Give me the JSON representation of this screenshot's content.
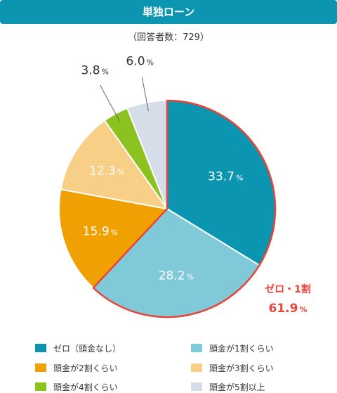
{
  "header": {
    "title": "単独ローン",
    "subtitle": "（回答者数：729）"
  },
  "chart_data": {
    "type": "pie",
    "title": "単独ローン",
    "subtitle": "（回答者数：729）",
    "slices": [
      {
        "label": "ゼロ（頭金なし）",
        "value": 33.7,
        "display": "33.7",
        "color": "#0b95b0"
      },
      {
        "label": "頭金が1割くらい",
        "value": 28.2,
        "display": "28.2",
        "color": "#80c9d9"
      },
      {
        "label": "頭金が2割くらい",
        "value": 15.9,
        "display": "15.9",
        "color": "#f0a000"
      },
      {
        "label": "頭金が3割くらい",
        "value": 12.3,
        "display": "12.3",
        "color": "#f7cf86"
      },
      {
        "label": "頭金が4割くらい",
        "value": 3.8,
        "display": "3.8",
        "color": "#8cc21f"
      },
      {
        "label": "頭金が5割以上",
        "value": 6.0,
        "display": "6.0",
        "color": "#d5dde8"
      }
    ],
    "percent_suffix": "%",
    "annotation": {
      "label": "ゼロ・1割",
      "value": "61.9",
      "color": "#e8443a"
    },
    "legend_position": "bottom"
  }
}
